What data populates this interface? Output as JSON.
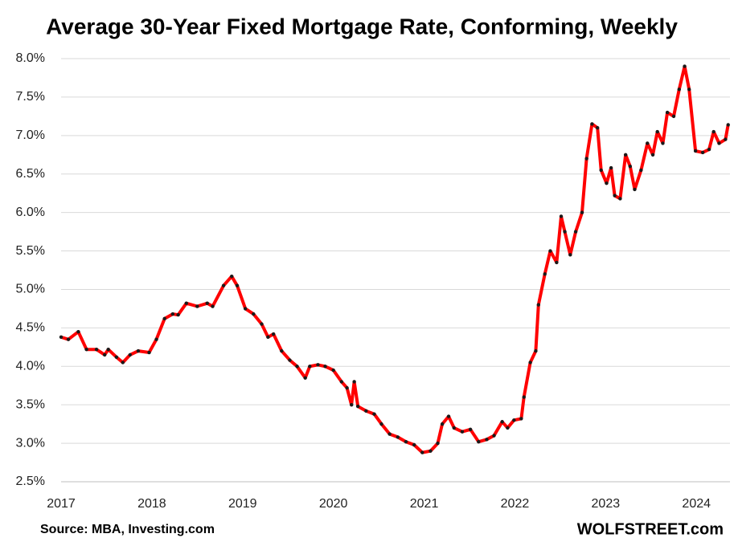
{
  "chart_data": {
    "type": "line",
    "title": "Average 30-Year Fixed Mortgage Rate, Conforming, Weekly",
    "source": "Source: MBA, Investing.com",
    "brand": "WOLFSTREET.com",
    "x": [
      2017.0,
      2017.08,
      2017.19,
      2017.28,
      2017.39,
      2017.48,
      2017.52,
      2017.61,
      2017.68,
      2017.76,
      2017.85,
      2017.97,
      2018.05,
      2018.14,
      2018.23,
      2018.29,
      2018.38,
      2018.5,
      2018.61,
      2018.67,
      2018.79,
      2018.88,
      2018.94,
      2019.03,
      2019.12,
      2019.21,
      2019.28,
      2019.34,
      2019.43,
      2019.52,
      2019.6,
      2019.69,
      2019.74,
      2019.83,
      2019.91,
      2020.0,
      2020.09,
      2020.15,
      2020.2,
      2020.23,
      2020.27,
      2020.36,
      2020.45,
      2020.53,
      2020.62,
      2020.71,
      2020.8,
      2020.89,
      2020.98,
      2021.07,
      2021.15,
      2021.2,
      2021.27,
      2021.33,
      2021.42,
      2021.51,
      2021.6,
      2021.69,
      2021.77,
      2021.86,
      2021.92,
      2021.99,
      2022.07,
      2022.1,
      2022.17,
      2022.23,
      2022.26,
      2022.33,
      2022.39,
      2022.46,
      2022.51,
      2022.55,
      2022.61,
      2022.67,
      2022.74,
      2022.79,
      2022.85,
      2022.91,
      2022.95,
      2023.01,
      2023.06,
      2023.1,
      2023.16,
      2023.22,
      2023.27,
      2023.32,
      2023.39,
      2023.46,
      2023.52,
      2023.57,
      2023.63,
      2023.68,
      2023.75,
      2023.81,
      2023.87,
      2023.92,
      2023.99,
      2024.07,
      2024.14,
      2024.19,
      2024.25,
      2024.32,
      2024.35
    ],
    "series": [
      {
        "name": "30-Year Fixed Rate",
        "color": "#ff0000",
        "marker_color": "#1a1a1a",
        "values": [
          4.38,
          4.35,
          4.45,
          4.22,
          4.22,
          4.15,
          4.22,
          4.12,
          4.05,
          4.15,
          4.2,
          4.18,
          4.35,
          4.62,
          4.68,
          4.67,
          4.82,
          4.78,
          4.82,
          4.78,
          5.05,
          5.17,
          5.05,
          4.75,
          4.68,
          4.55,
          4.38,
          4.42,
          4.2,
          4.08,
          4.0,
          3.85,
          4.0,
          4.02,
          4.0,
          3.95,
          3.8,
          3.72,
          3.5,
          3.8,
          3.48,
          3.42,
          3.38,
          3.25,
          3.12,
          3.08,
          3.02,
          2.98,
          2.88,
          2.9,
          3.0,
          3.25,
          3.35,
          3.2,
          3.15,
          3.18,
          3.02,
          3.05,
          3.1,
          3.28,
          3.2,
          3.3,
          3.32,
          3.6,
          4.05,
          4.2,
          4.8,
          5.2,
          5.5,
          5.35,
          5.95,
          5.75,
          5.45,
          5.75,
          6.0,
          6.7,
          7.15,
          7.1,
          6.55,
          6.38,
          6.58,
          6.22,
          6.18,
          6.75,
          6.6,
          6.3,
          6.55,
          6.9,
          6.75,
          7.05,
          6.9,
          7.3,
          7.25,
          7.6,
          7.9,
          7.6,
          6.8,
          6.78,
          6.82,
          7.05,
          6.9,
          6.95,
          7.14
        ]
      }
    ],
    "xlim": [
      2017,
      2024.37
    ],
    "xticks": [
      2017,
      2018,
      2019,
      2020,
      2021,
      2022,
      2023,
      2024
    ],
    "ylim": [
      2.5,
      8.0
    ],
    "yticks": [
      {
        "value": 2.5,
        "label": "2.5%"
      },
      {
        "value": 3.0,
        "label": "3.0%"
      },
      {
        "value": 3.5,
        "label": "3.5%"
      },
      {
        "value": 4.0,
        "label": "4.0%"
      },
      {
        "value": 4.5,
        "label": "4.5%"
      },
      {
        "value": 5.0,
        "label": "5.0%"
      },
      {
        "value": 5.5,
        "label": "5.5%"
      },
      {
        "value": 6.0,
        "label": "6.0%"
      },
      {
        "value": 6.5,
        "label": "6.5%"
      },
      {
        "value": 7.0,
        "label": "7.0%"
      },
      {
        "value": 7.5,
        "label": "7.5%"
      },
      {
        "value": 8.0,
        "label": "8.0%"
      }
    ],
    "grid": true
  }
}
